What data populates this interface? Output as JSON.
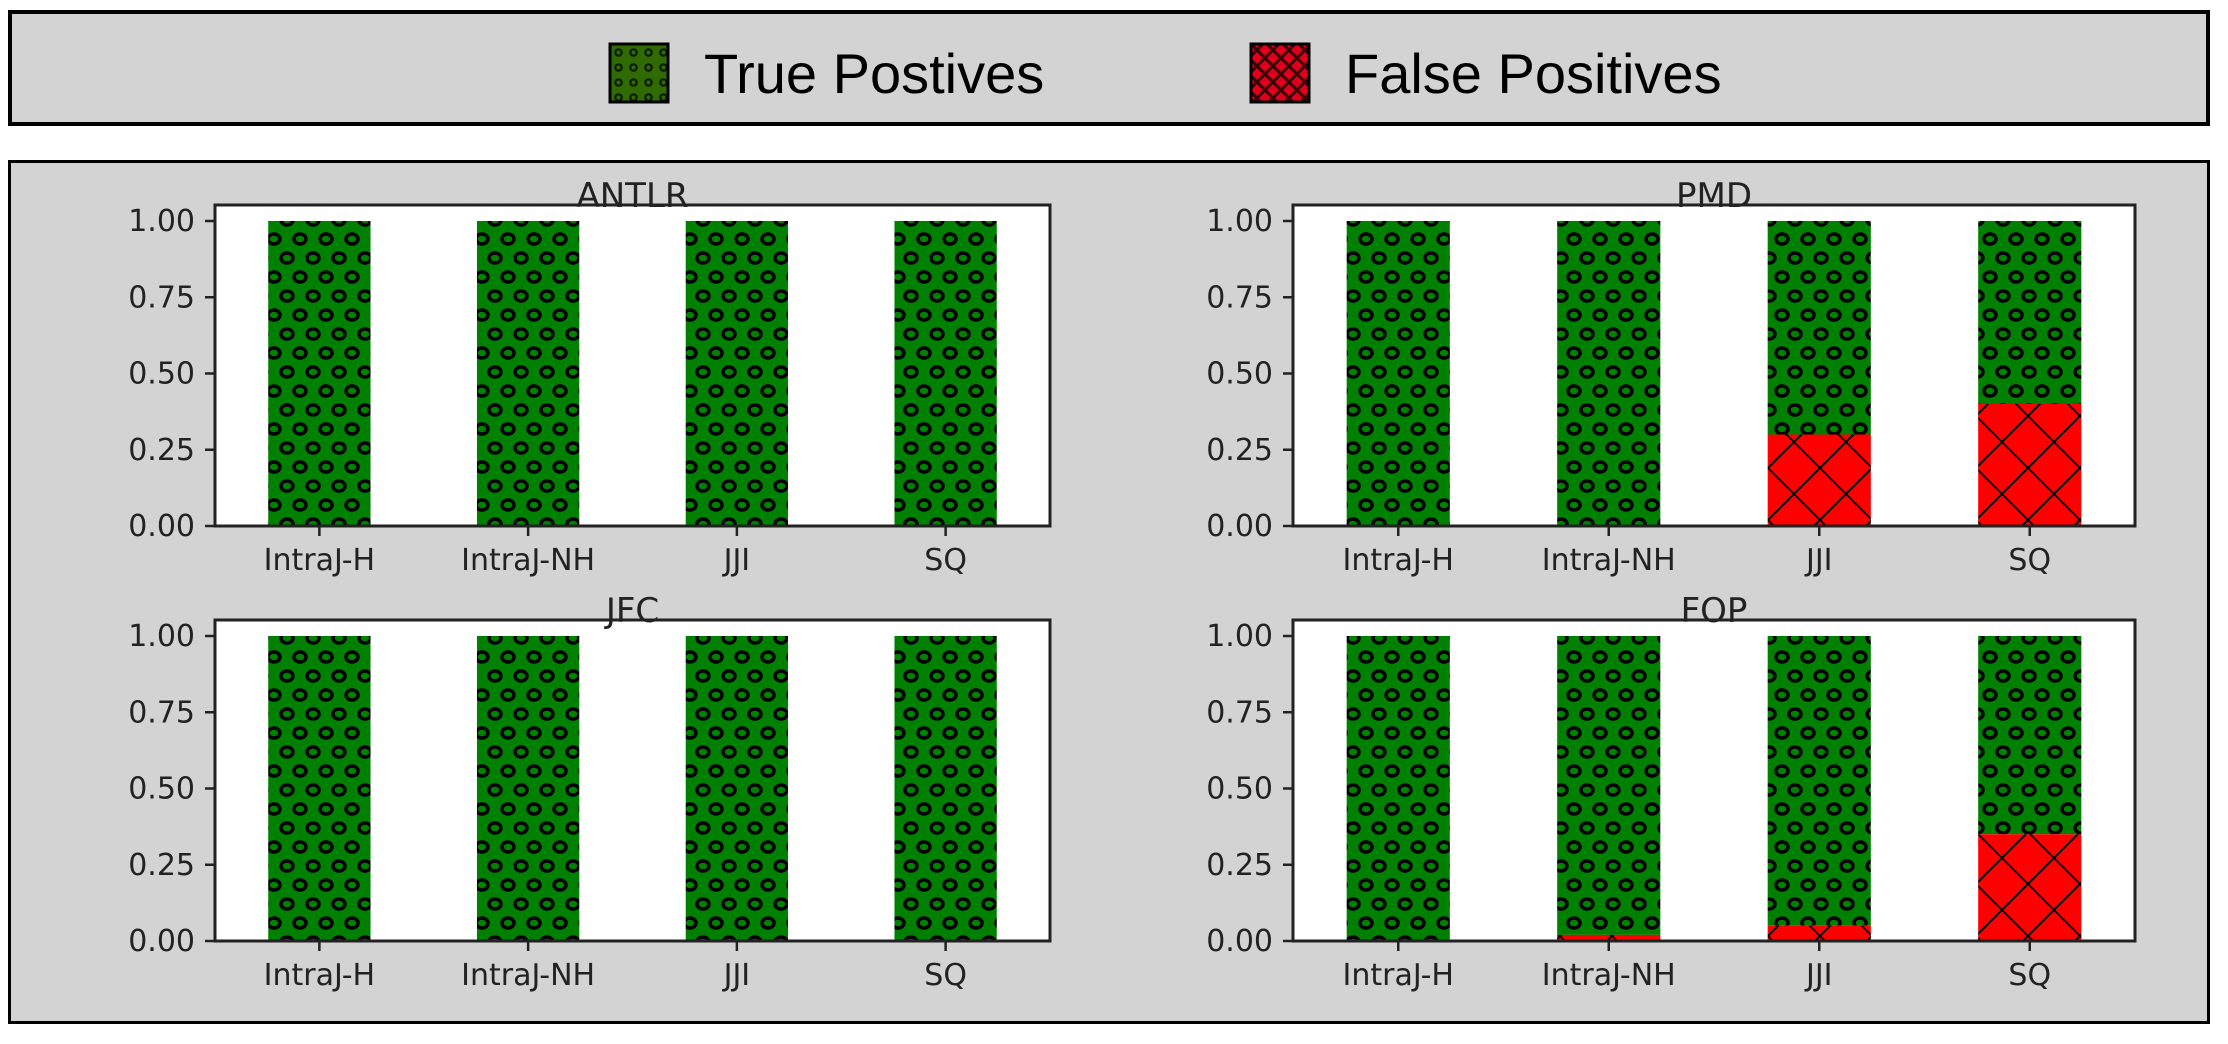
{
  "legend": {
    "items": [
      {
        "key": "tp",
        "label": "True Postives",
        "color": "#008000",
        "hatch": "circles",
        "icon": "green-dotted-swatch"
      },
      {
        "key": "fp",
        "label": "False Positives",
        "color": "#ff0000",
        "hatch": "crosshatch",
        "icon": "red-crosshatch-swatch"
      }
    ]
  },
  "chart_data": [
    {
      "type": "bar",
      "stacked": true,
      "title": "ANTLR",
      "categories": [
        "IntraJ-H",
        "IntraJ-NH",
        "JJI",
        "SQ"
      ],
      "ylim": [
        0,
        1.0
      ],
      "yticks": [
        0.0,
        0.25,
        0.5,
        0.75,
        1.0
      ],
      "series": [
        {
          "name": "False Positives",
          "values": [
            0,
            0,
            0,
            0
          ]
        },
        {
          "name": "True Postives",
          "values": [
            1.0,
            1.0,
            1.0,
            1.0
          ]
        }
      ]
    },
    {
      "type": "bar",
      "stacked": true,
      "title": "PMD",
      "categories": [
        "IntraJ-H",
        "IntraJ-NH",
        "JJI",
        "SQ"
      ],
      "ylim": [
        0,
        1.0
      ],
      "yticks": [
        0.0,
        0.25,
        0.5,
        0.75,
        1.0
      ],
      "series": [
        {
          "name": "False Positives",
          "values": [
            0,
            0,
            0.3,
            0.4
          ]
        },
        {
          "name": "True Postives",
          "values": [
            1.0,
            1.0,
            0.7,
            0.6
          ]
        }
      ]
    },
    {
      "type": "bar",
      "stacked": true,
      "title": "JFC",
      "categories": [
        "IntraJ-H",
        "IntraJ-NH",
        "JJI",
        "SQ"
      ],
      "ylim": [
        0,
        1.0
      ],
      "yticks": [
        0.0,
        0.25,
        0.5,
        0.75,
        1.0
      ],
      "series": [
        {
          "name": "False Positives",
          "values": [
            0,
            0,
            0,
            0
          ]
        },
        {
          "name": "True Postives",
          "values": [
            1.0,
            1.0,
            1.0,
            1.0
          ]
        }
      ]
    },
    {
      "type": "bar",
      "stacked": true,
      "title": "FOP",
      "categories": [
        "IntraJ-H",
        "IntraJ-NH",
        "JJI",
        "SQ"
      ],
      "ylim": [
        0,
        1.0
      ],
      "yticks": [
        0.0,
        0.25,
        0.5,
        0.75,
        1.0
      ],
      "series": [
        {
          "name": "False Positives",
          "values": [
            0,
            0.02,
            0.05,
            0.35
          ]
        },
        {
          "name": "True Postives",
          "values": [
            1.0,
            0.98,
            0.95,
            0.65
          ]
        }
      ]
    }
  ]
}
